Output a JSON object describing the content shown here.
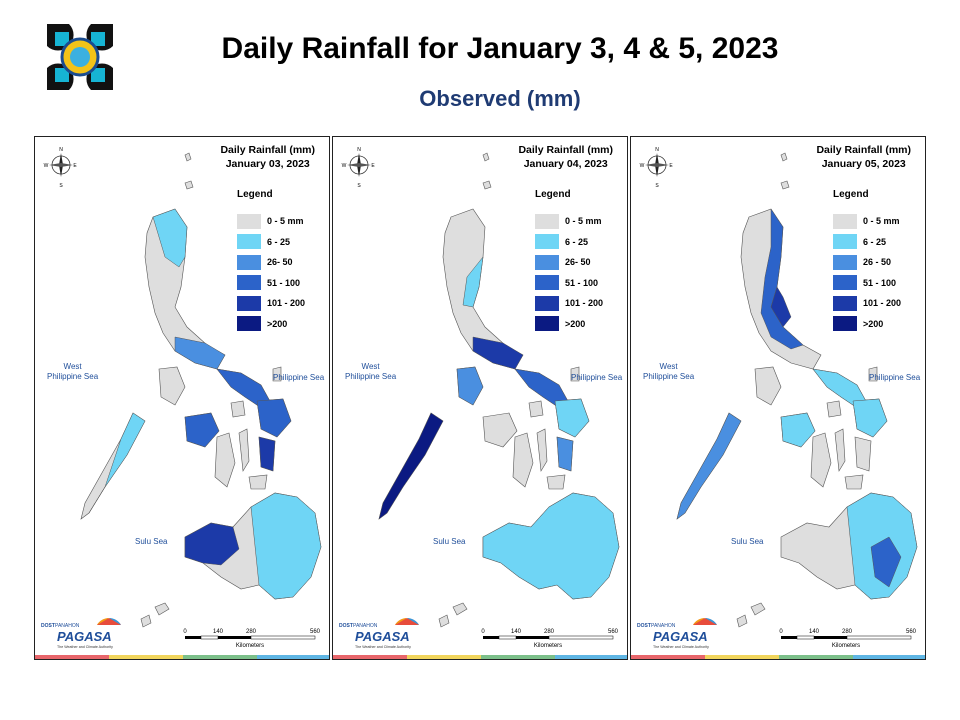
{
  "header": {
    "title": "Daily Rainfall for January 3, 4 & 5, 2023",
    "subtitle": "Observed (mm)"
  },
  "panels": [
    {
      "title_line1": "Daily Rainfall (mm)",
      "date": "January 03, 2023"
    },
    {
      "title_line1": "Daily Rainfall (mm)",
      "date": "January 04, 2023"
    },
    {
      "title_line1": "Daily Rainfall (mm)",
      "date": "January 05, 2023"
    }
  ],
  "legend": {
    "title": "Legend",
    "items": [
      {
        "label": "0 - 5 mm",
        "color": "#dedede"
      },
      {
        "label": "6 - 25",
        "color": "#6fd5f5"
      },
      {
        "label": "26- 50",
        "color": "#4a8fe0"
      },
      {
        "label": "51 - 100",
        "color": "#2c63c9"
      },
      {
        "label": "101 - 200",
        "color": "#1c3aa8"
      },
      {
        "label": ">200",
        "color": "#0b1a82"
      }
    ]
  },
  "panel_legend_labels": [
    [
      "0 - 5 mm",
      "6 - 25",
      "26- 50",
      "51 - 100",
      "101 - 200",
      ">200"
    ],
    [
      "0 - 5 mm",
      "6 - 25",
      "26- 50",
      "51 - 100",
      "101 - 200",
      ">200"
    ],
    [
      "0 - 5 mm",
      "6 - 25",
      "26 - 50",
      "51 - 100",
      "101 - 200",
      ">200"
    ]
  ],
  "seas": {
    "west": "West\nPhilippine Sea",
    "east": "Philippine Sea",
    "sulu": "Sulu Sea"
  },
  "compass": {
    "n": "N",
    "s": "S",
    "e": "E",
    "w": "W"
  },
  "scale": {
    "ticks": [
      "0",
      "140",
      "280",
      "560"
    ],
    "unit": "Kilometers"
  },
  "footer": {
    "brand": "PAGASA",
    "badge": "DOST",
    "tagline_small": "PANAHON",
    "tagline": "The Weather and Climate Authority"
  },
  "stripe_colors": [
    "#e8666b",
    "#f1d55c",
    "#7cc08a",
    "#5fb6e4"
  ],
  "map_colors": {
    "land": "#dedede",
    "light": "#6fd5f5",
    "mid": "#4a8fe0",
    "strong": "#2c63c9",
    "heavy": "#1c3aa8",
    "extreme": "#0b1a82",
    "border": "#555555"
  }
}
